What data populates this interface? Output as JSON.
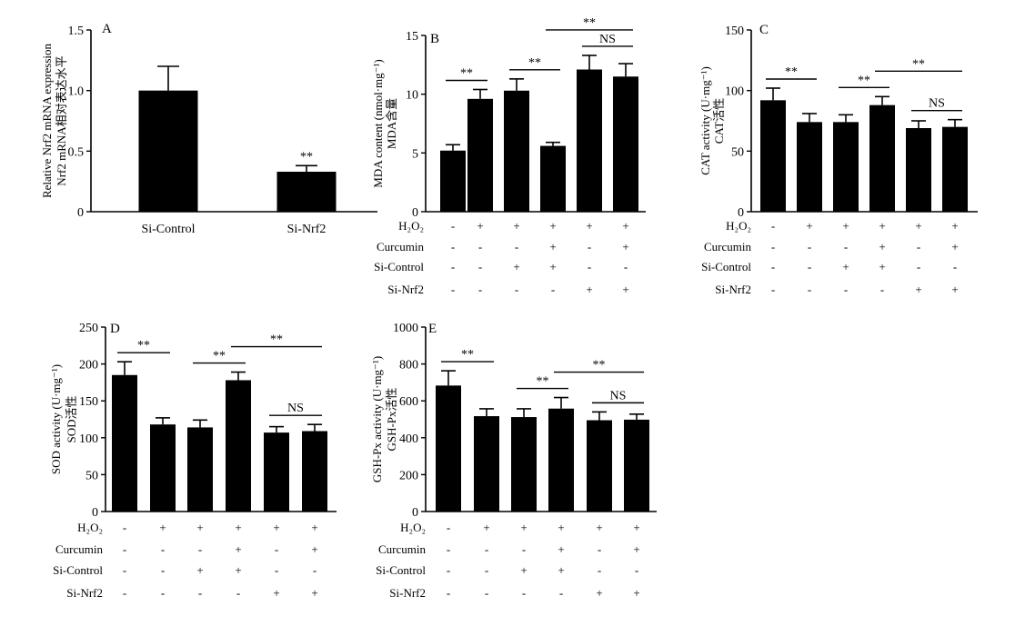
{
  "chart_data": [
    {
      "panel": "A",
      "type": "bar",
      "ylabel_cn": "Nrf2 mRNA相对表达水平",
      "ylabel_en": "Relative Nrf2 mRNA expression",
      "ylim": [
        0,
        1.5
      ],
      "yticks": [
        "0",
        "0.5",
        "1.0",
        "1.5"
      ],
      "categories": [
        "Si-Control",
        "Si-Nrf2"
      ],
      "values": [
        1.0,
        0.33
      ],
      "errors": [
        0.2,
        0.05
      ],
      "annotations": [
        {
          "text": "**",
          "bar": 1
        }
      ],
      "brackets": []
    },
    {
      "panel": "B",
      "type": "bar",
      "ylabel_cn": "MDA含量",
      "ylabel_en": "MDA content (nmol·mg⁻¹)",
      "ylim": [
        0,
        15
      ],
      "yticks": [
        "0",
        "5",
        "10",
        "15"
      ],
      "values": [
        5.2,
        9.6,
        10.3,
        5.6,
        12.1,
        11.5
      ],
      "errors": [
        0.5,
        0.8,
        1.0,
        0.3,
        1.2,
        1.1
      ],
      "brackets": [
        {
          "from": 0,
          "to": 1,
          "text": "**"
        },
        {
          "from": 2,
          "to": 3,
          "text": "**"
        },
        {
          "from": 3,
          "to": 5,
          "text": "**"
        },
        {
          "from": 4,
          "to": 5,
          "text": "NS"
        }
      ]
    },
    {
      "panel": "C",
      "type": "bar",
      "ylabel_cn": "CAT活性",
      "ylabel_en": "CAT activity (U·mg⁻¹)",
      "ylim": [
        0,
        150
      ],
      "yticks": [
        "0",
        "50",
        "100",
        "150"
      ],
      "values": [
        92,
        74,
        74,
        88,
        69,
        70
      ],
      "errors": [
        10,
        7,
        6,
        7,
        6,
        6
      ],
      "brackets": [
        {
          "from": 0,
          "to": 1,
          "text": "**"
        },
        {
          "from": 2,
          "to": 3,
          "text": "**"
        },
        {
          "from": 3,
          "to": 5,
          "text": "**"
        },
        {
          "from": 4,
          "to": 5,
          "text": "NS"
        }
      ]
    },
    {
      "panel": "D",
      "type": "bar",
      "ylabel_cn": "SOD活性",
      "ylabel_en": "SOD activity (U·mg⁻¹)",
      "ylim": [
        0,
        250
      ],
      "yticks": [
        "0",
        "50",
        "100",
        "150",
        "200",
        "250"
      ],
      "values": [
        185,
        118,
        114,
        178,
        107,
        109
      ],
      "errors": [
        18,
        9,
        10,
        11,
        8,
        9
      ],
      "brackets": [
        {
          "from": 0,
          "to": 1,
          "text": "**"
        },
        {
          "from": 2,
          "to": 3,
          "text": "**"
        },
        {
          "from": 3,
          "to": 5,
          "text": "**"
        },
        {
          "from": 4,
          "to": 5,
          "text": "NS"
        }
      ]
    },
    {
      "panel": "E",
      "type": "bar",
      "ylabel_cn": "GSH-Px活性",
      "ylabel_en": "GSH-Px activity (U·mg⁻¹)",
      "ylim": [
        0,
        1000
      ],
      "yticks": [
        "0",
        "200",
        "400",
        "600",
        "800",
        "1000"
      ],
      "values": [
        683,
        517,
        512,
        558,
        495,
        498
      ],
      "errors": [
        80,
        40,
        45,
        60,
        45,
        30
      ],
      "brackets": [
        {
          "from": 0,
          "to": 1,
          "text": "**"
        },
        {
          "from": 2,
          "to": 3,
          "text": "**"
        },
        {
          "from": 3,
          "to": 5,
          "text": "**"
        },
        {
          "from": 4,
          "to": 5,
          "text": "NS"
        }
      ]
    }
  ],
  "treatment_table": {
    "rows": [
      {
        "label": "H₂O₂",
        "signs": [
          "-",
          "+",
          "+",
          "+",
          "+",
          "+"
        ]
      },
      {
        "label": "Curcumin",
        "signs": [
          "-",
          "-",
          "-",
          "+",
          "-",
          "+"
        ]
      },
      {
        "label": "Si-Control",
        "signs": [
          "-",
          "-",
          "+",
          "+",
          "-",
          "-"
        ]
      },
      {
        "label": "Si-Nrf2",
        "signs": [
          "-",
          "-",
          "-",
          "-",
          "+",
          "+"
        ]
      }
    ]
  }
}
